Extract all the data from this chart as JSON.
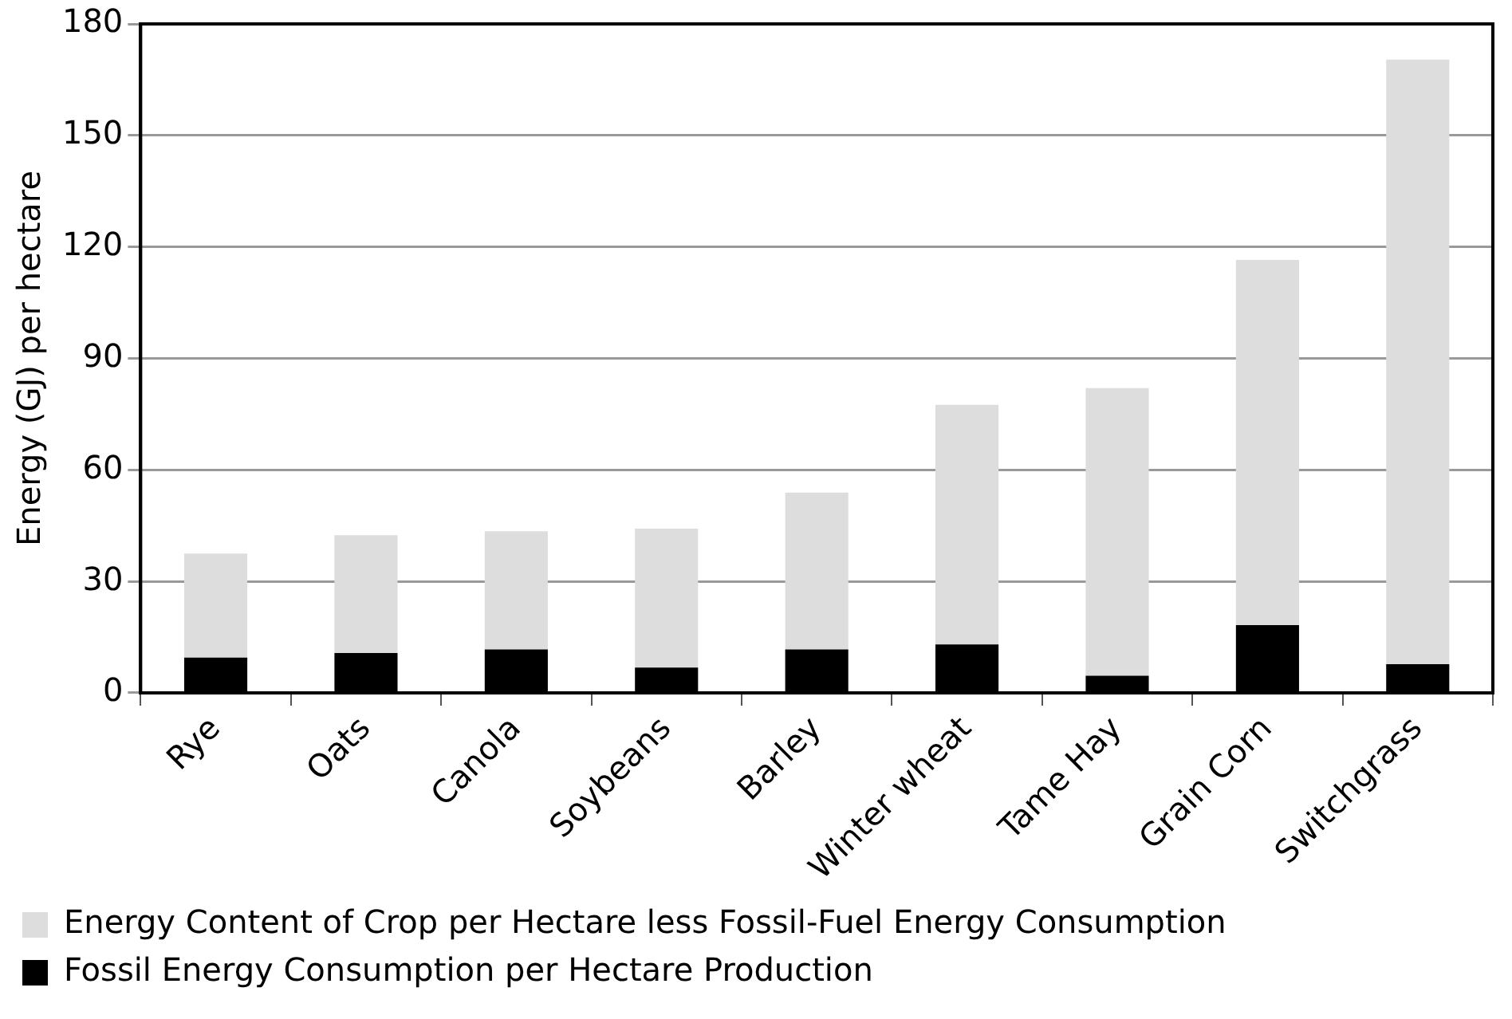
{
  "chart_data": {
    "type": "bar",
    "stacked": true,
    "ylabel": "Energy (GJ) per hectare",
    "categories": [
      "Rye",
      "Oats",
      "Canola",
      "Soybeans",
      "Barley",
      "Winter wheat",
      "Tame Hay",
      "Grain Corn",
      "Switchgrass"
    ],
    "series": [
      {
        "name": "Fossil Energy Consumption per Hectare Production",
        "color": "#000000",
        "values": [
          9.5,
          10.7,
          11.7,
          6.8,
          11.7,
          13,
          4.6,
          18.2,
          7.7
        ]
      },
      {
        "name": "Energy Content of Crop per Hectare less Fossil-Fuel Energy Consumption",
        "color": "#dddddd",
        "values": [
          28,
          31.7,
          31.8,
          37.4,
          42.2,
          64.5,
          77.4,
          98.3,
          162.7
        ]
      }
    ],
    "ylim": [
      0,
      180
    ],
    "yticks": [
      0,
      30,
      60,
      90,
      120,
      150,
      180
    ],
    "grid": "y",
    "legend": "bottom"
  }
}
